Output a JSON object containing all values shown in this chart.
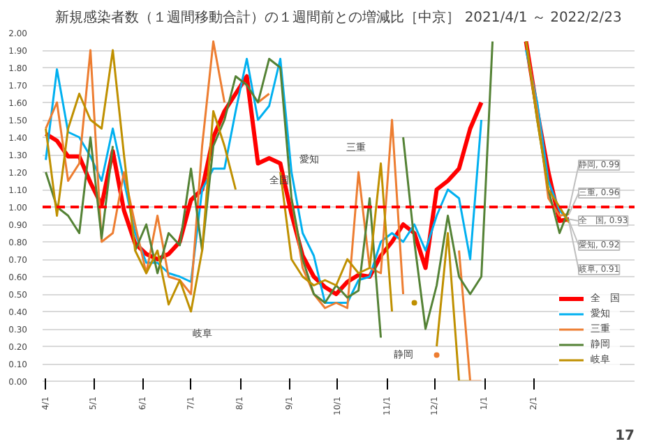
{
  "chart_data": {
    "type": "line",
    "title": "新規感染者数（１週間移動合計）の１週間前との増減比［中京］ 2021/4/1 ～ 2022/2/23",
    "x": [
      "2021-04-01",
      "2021-04-08",
      "2021-04-15",
      "2021-04-22",
      "2021-04-29",
      "2021-05-06",
      "2021-05-13",
      "2021-05-20",
      "2021-05-27",
      "2021-06-03",
      "2021-06-10",
      "2021-06-17",
      "2021-06-24",
      "2021-07-01",
      "2021-07-08",
      "2021-07-15",
      "2021-07-22",
      "2021-07-29",
      "2021-08-05",
      "2021-08-12",
      "2021-08-19",
      "2021-08-26",
      "2021-09-02",
      "2021-09-09",
      "2021-09-16",
      "2021-09-23",
      "2021-09-30",
      "2021-10-07",
      "2021-10-14",
      "2021-10-21",
      "2021-10-28",
      "2021-11-04",
      "2021-11-11",
      "2021-11-18",
      "2021-11-25",
      "2021-12-02",
      "2021-12-09",
      "2021-12-16",
      "2021-12-23",
      "2021-12-30",
      "2022-01-06",
      "2022-01-13",
      "2022-01-20",
      "2022-01-27",
      "2022-02-03",
      "2022-02-10",
      "2022-02-17",
      "2022-02-23"
    ],
    "series": [
      {
        "name": "全　国",
        "color": "#ff0000",
        "values": [
          1.42,
          1.38,
          1.29,
          1.29,
          1.14,
          1.01,
          1.32,
          0.98,
          0.79,
          0.73,
          0.7,
          0.73,
          0.8,
          1.04,
          1.1,
          1.4,
          1.55,
          1.65,
          1.75,
          1.25,
          1.28,
          1.25,
          0.96,
          0.72,
          0.6,
          0.54,
          0.5,
          0.57,
          0.61,
          0.6,
          0.72,
          0.8,
          0.9,
          0.85,
          0.65,
          1.1,
          1.15,
          1.22,
          1.45,
          1.6,
          null,
          null,
          null,
          1.95,
          1.55,
          1.2,
          0.92,
          0.93
        ]
      },
      {
        "name": "愛知",
        "color": "#00b0f0",
        "values": [
          1.27,
          1.79,
          1.43,
          1.4,
          1.29,
          1.15,
          1.45,
          1.15,
          0.85,
          0.68,
          0.68,
          0.62,
          0.6,
          0.57,
          1.1,
          1.22,
          1.22,
          1.55,
          1.85,
          1.5,
          1.58,
          1.85,
          1.2,
          0.85,
          0.72,
          0.45,
          0.45,
          0.45,
          0.58,
          0.6,
          0.8,
          0.85,
          0.8,
          0.9,
          0.75,
          0.95,
          1.1,
          1.05,
          0.7,
          1.5,
          null,
          null,
          null,
          1.9,
          1.6,
          1.15,
          0.98,
          0.92
        ]
      },
      {
        "name": "三重",
        "color": "#ed7d31",
        "values": [
          1.45,
          1.6,
          1.15,
          1.25,
          1.9,
          0.8,
          0.85,
          1.2,
          0.9,
          0.62,
          0.95,
          0.6,
          0.58,
          0.5,
          1.35,
          1.95,
          1.6,
          null,
          null,
          1.6,
          1.65,
          null,
          1.05,
          0.65,
          0.5,
          0.42,
          0.45,
          0.42,
          1.2,
          0.65,
          0.62,
          1.5,
          0.5,
          null,
          null,
          0.15,
          null,
          0.75,
          0.0,
          0.0,
          null,
          null,
          null,
          1.95,
          1.55,
          1.05,
          0.95,
          0.96
        ]
      },
      {
        "name": "静岡",
        "color": "#548235",
        "values": [
          1.2,
          1.0,
          0.95,
          0.85,
          1.4,
          0.82,
          1.35,
          null,
          0.75,
          0.9,
          0.62,
          0.85,
          0.78,
          1.22,
          0.75,
          1.35,
          1.5,
          1.75,
          1.7,
          1.6,
          1.85,
          1.8,
          1.05,
          0.7,
          0.5,
          0.45,
          0.55,
          0.48,
          0.52,
          1.05,
          0.25,
          null,
          1.4,
          0.8,
          0.3,
          0.55,
          0.95,
          0.6,
          0.5,
          0.6,
          1.95,
          null,
          null,
          1.95,
          1.5,
          1.1,
          0.85,
          0.99
        ]
      },
      {
        "name": "岐阜",
        "color": "#bf9000",
        "values": [
          1.45,
          0.95,
          1.45,
          1.65,
          1.5,
          1.45,
          1.9,
          1.3,
          0.75,
          0.62,
          0.75,
          0.44,
          0.58,
          0.4,
          0.75,
          1.55,
          1.35,
          1.1,
          null,
          null,
          null,
          1.2,
          0.7,
          0.6,
          0.55,
          0.58,
          0.55,
          0.7,
          0.62,
          0.65,
          1.25,
          0.4,
          null,
          0.45,
          null,
          0.2,
          0.85,
          0.0,
          0.0,
          null,
          null,
          null,
          null,
          1.95,
          1.5,
          1.1,
          1.0,
          0.91
        ]
      }
    ],
    "ylim": [
      0,
      2
    ],
    "yticks": [
      {
        "value": 0,
        "label": "0.00"
      },
      {
        "value": 0.1,
        "label": "0.10"
      },
      {
        "value": 0.2,
        "label": "0.20"
      },
      {
        "value": 0.3,
        "label": "0.30"
      },
      {
        "value": 0.4,
        "label": "0.40"
      },
      {
        "value": 0.5,
        "label": "0.50"
      },
      {
        "value": 0.6,
        "label": "0.60"
      },
      {
        "value": 0.7,
        "label": "0.70"
      },
      {
        "value": 0.8,
        "label": "0.80"
      },
      {
        "value": 0.9,
        "label": "0.90"
      },
      {
        "value": 1,
        "label": "1.00"
      },
      {
        "value": 1.1,
        "label": "1.10"
      },
      {
        "value": 1.2,
        "label": "1.20"
      },
      {
        "value": 1.3,
        "label": "1.30"
      },
      {
        "value": 1.4,
        "label": "1.40"
      },
      {
        "value": 1.5,
        "label": "1.50"
      },
      {
        "value": 1.6,
        "label": "1.60"
      },
      {
        "value": 1.7,
        "label": "1.70"
      },
      {
        "value": 1.8,
        "label": "1.80"
      },
      {
        "value": 1.9,
        "label": "1.90"
      },
      {
        "value": 2,
        "label": "2.00"
      }
    ],
    "xlim": [
      "2021-03-30",
      "2022-04-05"
    ],
    "xticks": [
      {
        "value": "2021-04-01",
        "label": "4/1"
      },
      {
        "value": "2021-05-01",
        "label": "5/1"
      },
      {
        "value": "2021-06-01",
        "label": "6/1"
      },
      {
        "value": "2021-07-01",
        "label": "7/1"
      },
      {
        "value": "2021-08-01",
        "label": "8/1"
      },
      {
        "value": "2021-09-01",
        "label": "9/1"
      },
      {
        "value": "2021-10-01",
        "label": "10/1"
      },
      {
        "value": "2021-11-01",
        "label": "11/1"
      },
      {
        "value": "2021-12-01",
        "label": "12/1"
      },
      {
        "value": "2022-01-01",
        "label": "1/1"
      },
      {
        "value": "2022-02-01",
        "label": "2/1"
      }
    ],
    "grid": "y",
    "legend": "bottom right",
    "ref_lines": [
      {
        "axis": "y",
        "value": 1.0,
        "color": "#ff0000",
        "line_style": "dashed"
      }
    ],
    "annotations": [
      "全国",
      "愛知",
      "三重",
      "静岡",
      "岐阜",
      {
        "text": "静岡, 0.99",
        "x": "2022-02-23",
        "y": 0.99
      },
      {
        "text": "三重, 0.96",
        "x": "2022-02-23",
        "y": 0.96
      },
      {
        "text": "全　国, 0.93",
        "x": "2022-02-23",
        "y": 0.93
      },
      {
        "text": "愛知, 0.92",
        "x": "2022-02-23",
        "y": 0.92
      },
      {
        "text": "岐阜, 0.91",
        "x": "2022-02-23",
        "y": 0.91
      },
      "17"
    ]
  }
}
